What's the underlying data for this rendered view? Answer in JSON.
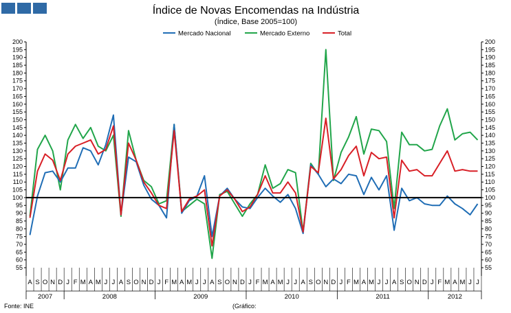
{
  "header": {
    "logo_icon": "three-blue-blocks-logo"
  },
  "chart_data": {
    "type": "line",
    "title": "Índice de Novas Encomendas na Indústria",
    "subtitle": "(Índice, Base 2005=100)",
    "ylim": [
      55,
      200
    ],
    "yticks": [
      55,
      60,
      65,
      70,
      75,
      80,
      85,
      90,
      95,
      100,
      105,
      110,
      115,
      120,
      125,
      130,
      135,
      140,
      145,
      150,
      155,
      160,
      165,
      170,
      175,
      180,
      185,
      190,
      195,
      200
    ],
    "reference_line": 100,
    "month_labels": [
      "A",
      "S",
      "O",
      "N",
      "D",
      "J",
      "F",
      "M",
      "A",
      "M",
      "J",
      "J",
      "A",
      "S",
      "O",
      "N",
      "D",
      "J",
      "F",
      "M",
      "A",
      "M",
      "J",
      "J",
      "A",
      "S",
      "O",
      "N",
      "D",
      "J",
      "F",
      "M",
      "A",
      "M",
      "J",
      "J",
      "A",
      "S",
      "O",
      "N",
      "D",
      "J",
      "F",
      "M",
      "A",
      "M",
      "J",
      "J",
      "A",
      "S",
      "O",
      "N",
      "D",
      "J",
      "F",
      "M",
      "A",
      "M",
      "J",
      "J"
    ],
    "years": [
      {
        "label": "2007",
        "start": 0,
        "end": 5
      },
      {
        "label": "2008",
        "start": 5,
        "end": 17
      },
      {
        "label": "2009",
        "start": 17,
        "end": 29
      },
      {
        "label": "2010",
        "start": 29,
        "end": 41
      },
      {
        "label": "2011",
        "start": 41,
        "end": 53
      },
      {
        "label": "2012",
        "start": 53,
        "end": 60
      }
    ],
    "series": [
      {
        "name": "Mercado Nacional",
        "color": "#1f6db5",
        "values": [
          76,
          101,
          116,
          117,
          110,
          119,
          119,
          132,
          130,
          121,
          134,
          153,
          89,
          126,
          123,
          108,
          99,
          95,
          87,
          147,
          90,
          98,
          101,
          114,
          75,
          101,
          106,
          99,
          94,
          93,
          100,
          106,
          101,
          97,
          102,
          93,
          77,
          121,
          115,
          107,
          112,
          109,
          115,
          114,
          102,
          113,
          105,
          114,
          79,
          106,
          98,
          100,
          96,
          95,
          95,
          101,
          96,
          93,
          89,
          96
        ]
      },
      {
        "name": "Mercado Externo",
        "color": "#21a54a",
        "values": [
          88,
          131,
          140,
          130,
          105,
          137,
          147,
          138,
          145,
          133,
          130,
          140,
          88,
          143,
          124,
          111,
          107,
          96,
          98,
          147,
          91,
          95,
          99,
          96,
          61,
          102,
          104,
          96,
          88,
          96,
          102,
          121,
          106,
          109,
          118,
          116,
          78,
          122,
          115,
          195,
          111,
          129,
          139,
          152,
          128,
          144,
          143,
          136,
          93,
          142,
          134,
          134,
          130,
          131,
          146,
          157,
          137,
          141,
          142,
          137
        ]
      },
      {
        "name": "Total",
        "color": "#d81f26",
        "values": [
          87,
          117,
          128,
          124,
          111,
          128,
          133,
          135,
          137,
          128,
          131,
          146,
          89,
          135,
          124,
          110,
          103,
          95,
          93,
          143,
          91,
          99,
          101,
          105,
          69,
          101,
          105,
          99,
          91,
          94,
          102,
          114,
          103,
          103,
          110,
          103,
          78,
          120,
          116,
          151,
          112,
          118,
          127,
          133,
          114,
          129,
          125,
          126,
          87,
          124,
          117,
          118,
          114,
          114,
          122,
          130,
          117,
          118,
          117,
          117
        ]
      }
    ]
  },
  "footer": {
    "source": "Fonte: INE",
    "graphic": "(Gráfico:"
  }
}
